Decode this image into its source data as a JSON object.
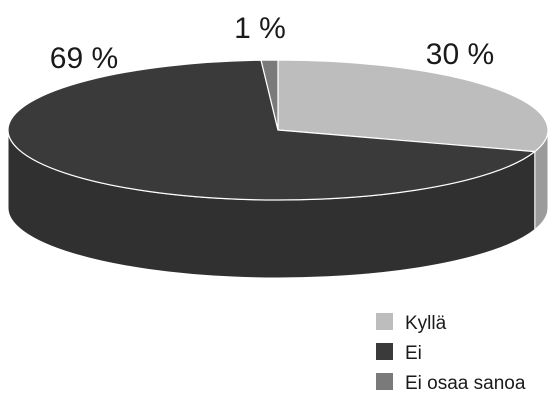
{
  "chart_data": {
    "type": "pie",
    "title": "",
    "slices": [
      {
        "label": "Kyllä",
        "value": 30,
        "value_label": "30 %",
        "color": "#bdbdbd"
      },
      {
        "label": "Ei",
        "value": 69,
        "value_label": "69 %",
        "color": "#3a3a3a"
      },
      {
        "label": "Ei osaa sanoa",
        "value": 1,
        "value_label": "1 %",
        "color": "#7a7a7a"
      }
    ],
    "three_d": true,
    "legend_position": "bottom-right"
  }
}
